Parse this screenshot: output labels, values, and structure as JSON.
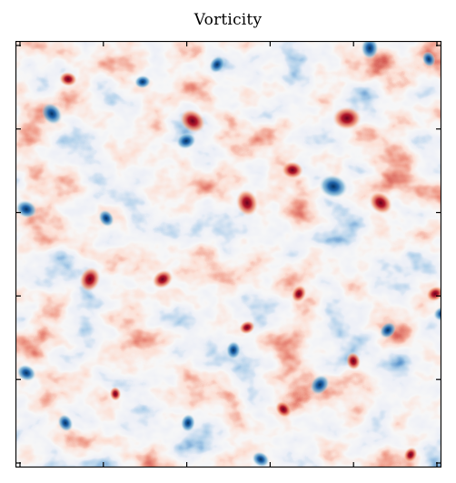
{
  "title": "Vorticity",
  "colormap": {
    "name": "RdBu_r",
    "negative_color": "#1f5fa6",
    "neutral_color": "#f7f7f7",
    "positive_color": "#b2182b"
  },
  "axes": {
    "frame_color": "#000000",
    "ticks_x": 5,
    "ticks_y": 5
  }
}
